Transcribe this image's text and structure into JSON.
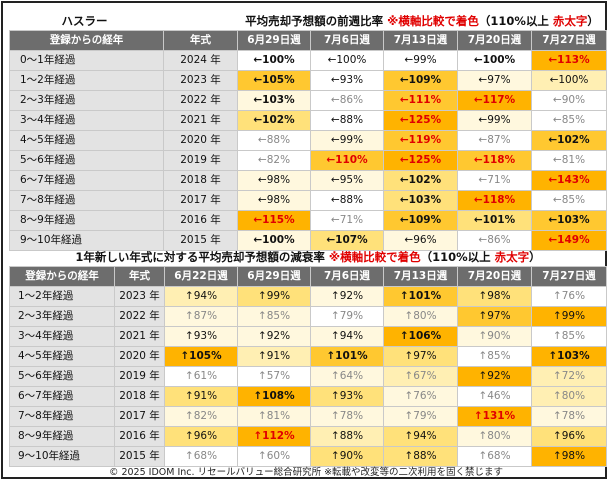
{
  "colors": {
    "header_bg": "#6d6d6d",
    "label_bg": "#e3e3e3",
    "accent_red": "#e00000",
    "heat_levels": [
      "#ffffff",
      "#fff8de",
      "#ffefb3",
      "#ffe17a",
      "#ffc830",
      "#ffb300"
    ]
  },
  "table1": {
    "maker": "ハスラー",
    "title_main": "平均売却予想額の前週比率",
    "title_note": "※横軸比較で着色",
    "title_paren_open": "（110%以上",
    "title_red": "赤太字",
    "title_paren_close": "）",
    "col_headers": [
      "登録からの経年",
      "年式",
      "6月29日週",
      "7月6日週",
      "7月13日週",
      "7月20日週",
      "7月27日週"
    ],
    "rows": [
      {
        "label": "0～1年経過",
        "year": "2024 年",
        "cells": [
          {
            "t": "←100%",
            "c": 0,
            "b": 1,
            "r": 0
          },
          {
            "t": "←100%",
            "c": 0,
            "b": 0,
            "r": 0
          },
          {
            "t": "←99%",
            "c": 0,
            "b": 0,
            "r": 0
          },
          {
            "t": "←100%",
            "c": 0,
            "b": 1,
            "r": 0
          },
          {
            "t": "←113%",
            "c": 5,
            "b": 1,
            "r": 1
          }
        ]
      },
      {
        "label": "1～2年経過",
        "year": "2023 年",
        "cells": [
          {
            "t": "←105%",
            "c": 4,
            "b": 1,
            "r": 0
          },
          {
            "t": "←93%",
            "c": 0,
            "b": 0,
            "r": 0
          },
          {
            "t": "←109%",
            "c": 4,
            "b": 1,
            "r": 0
          },
          {
            "t": "←97%",
            "c": 1,
            "b": 0,
            "r": 0
          },
          {
            "t": "←100%",
            "c": 2,
            "b": 0,
            "r": 0
          }
        ]
      },
      {
        "label": "2～3年経過",
        "year": "2022 年",
        "cells": [
          {
            "t": "←103%",
            "c": 1,
            "b": 1,
            "r": 0
          },
          {
            "t": "←86%",
            "c": 0,
            "b": 0,
            "r": 0,
            "g": 1
          },
          {
            "t": "←111%",
            "c": 4,
            "b": 1,
            "r": 1
          },
          {
            "t": "←117%",
            "c": 5,
            "b": 1,
            "r": 1
          },
          {
            "t": "←90%",
            "c": 0,
            "b": 0,
            "r": 0,
            "g": 1
          }
        ]
      },
      {
        "label": "3～4年経過",
        "year": "2021 年",
        "cells": [
          {
            "t": "←102%",
            "c": 3,
            "b": 1,
            "r": 0
          },
          {
            "t": "←88%",
            "c": 0,
            "b": 0,
            "r": 0
          },
          {
            "t": "←125%",
            "c": 5,
            "b": 1,
            "r": 1
          },
          {
            "t": "←99%",
            "c": 1,
            "b": 0,
            "r": 0
          },
          {
            "t": "←85%",
            "c": 0,
            "b": 0,
            "r": 0,
            "g": 1
          }
        ]
      },
      {
        "label": "4～5年経過",
        "year": "2020 年",
        "cells": [
          {
            "t": "←88%",
            "c": 0,
            "b": 0,
            "r": 0,
            "g": 1
          },
          {
            "t": "←99%",
            "c": 1,
            "b": 0,
            "r": 0
          },
          {
            "t": "←119%",
            "c": 4,
            "b": 1,
            "r": 1
          },
          {
            "t": "←87%",
            "c": 0,
            "b": 0,
            "r": 0,
            "g": 1
          },
          {
            "t": "←102%",
            "c": 4,
            "b": 1,
            "r": 0
          }
        ]
      },
      {
        "label": "5～6年経過",
        "year": "2019 年",
        "cells": [
          {
            "t": "←82%",
            "c": 0,
            "b": 0,
            "r": 0,
            "g": 1
          },
          {
            "t": "←110%",
            "c": 4,
            "b": 1,
            "r": 1
          },
          {
            "t": "←125%",
            "c": 5,
            "b": 1,
            "r": 1
          },
          {
            "t": "←118%",
            "c": 4,
            "b": 1,
            "r": 1
          },
          {
            "t": "←81%",
            "c": 0,
            "b": 0,
            "r": 0,
            "g": 1
          }
        ]
      },
      {
        "label": "6～7年経過",
        "year": "2018 年",
        "cells": [
          {
            "t": "←98%",
            "c": 1,
            "b": 0,
            "r": 0
          },
          {
            "t": "←95%",
            "c": 1,
            "b": 0,
            "r": 0
          },
          {
            "t": "←102%",
            "c": 3,
            "b": 1,
            "r": 0
          },
          {
            "t": "←71%",
            "c": 0,
            "b": 0,
            "r": 0,
            "g": 1
          },
          {
            "t": "←143%",
            "c": 5,
            "b": 1,
            "r": 1
          }
        ]
      },
      {
        "label": "7～8年経過",
        "year": "2017 年",
        "cells": [
          {
            "t": "←98%",
            "c": 1,
            "b": 0,
            "r": 0
          },
          {
            "t": "←88%",
            "c": 0,
            "b": 0,
            "r": 0
          },
          {
            "t": "←103%",
            "c": 3,
            "b": 1,
            "r": 0
          },
          {
            "t": "←118%",
            "c": 5,
            "b": 1,
            "r": 1
          },
          {
            "t": "←85%",
            "c": 0,
            "b": 0,
            "r": 0,
            "g": 1
          }
        ]
      },
      {
        "label": "8～9年経過",
        "year": "2016 年",
        "cells": [
          {
            "t": "←115%",
            "c": 5,
            "b": 1,
            "r": 1
          },
          {
            "t": "←71%",
            "c": 0,
            "b": 0,
            "r": 0,
            "g": 1
          },
          {
            "t": "←109%",
            "c": 4,
            "b": 1,
            "r": 0
          },
          {
            "t": "←101%",
            "c": 3,
            "b": 1,
            "r": 0
          },
          {
            "t": "←103%",
            "c": 4,
            "b": 1,
            "r": 0
          }
        ]
      },
      {
        "label": "9～10年経過",
        "year": "2015 年",
        "cells": [
          {
            "t": "←100%",
            "c": 1,
            "b": 1,
            "r": 0
          },
          {
            "t": "←107%",
            "c": 3,
            "b": 1,
            "r": 0
          },
          {
            "t": "←96%",
            "c": 1,
            "b": 0,
            "r": 0
          },
          {
            "t": "←86%",
            "c": 0,
            "b": 0,
            "r": 0,
            "g": 1
          },
          {
            "t": "←149%",
            "c": 5,
            "b": 1,
            "r": 1
          }
        ]
      }
    ]
  },
  "table2": {
    "title_main": "1年新しい年式に対する平均売却予想額の減衰率",
    "title_note": "※横軸比較で着色",
    "title_paren_open": "（110%以上",
    "title_red": "赤太字",
    "title_paren_close": "）",
    "col_headers": [
      "登録からの経年",
      "年式",
      "6月22日週",
      "6月29日週",
      "7月6日週",
      "7月13日週",
      "7月20日週",
      "7月27日週"
    ],
    "rows": [
      {
        "label": "1～2年経過",
        "year": "2023 年",
        "cells": [
          {
            "t": "↑94%",
            "c": 2,
            "b": 0,
            "r": 0
          },
          {
            "t": "↑99%",
            "c": 3,
            "b": 0,
            "r": 0
          },
          {
            "t": "↑92%",
            "c": 1,
            "b": 0,
            "r": 0
          },
          {
            "t": "↑101%",
            "c": 4,
            "b": 1,
            "r": 0
          },
          {
            "t": "↑98%",
            "c": 3,
            "b": 0,
            "r": 0
          },
          {
            "t": "↑76%",
            "c": 0,
            "b": 0,
            "r": 0,
            "g": 1
          }
        ]
      },
      {
        "label": "2～3年経過",
        "year": "2022 年",
        "cells": [
          {
            "t": "↑87%",
            "c": 1,
            "b": 0,
            "r": 0,
            "g": 1
          },
          {
            "t": "↑85%",
            "c": 1,
            "b": 0,
            "r": 0,
            "g": 1
          },
          {
            "t": "↑79%",
            "c": 0,
            "b": 0,
            "r": 0,
            "g": 1
          },
          {
            "t": "↑80%",
            "c": 1,
            "b": 0,
            "r": 0,
            "g": 1
          },
          {
            "t": "↑97%",
            "c": 4,
            "b": 0,
            "r": 0
          },
          {
            "t": "↑99%",
            "c": 5,
            "b": 0,
            "r": 0
          }
        ]
      },
      {
        "label": "3～4年経過",
        "year": "2021 年",
        "cells": [
          {
            "t": "↑93%",
            "c": 1,
            "b": 0,
            "r": 0
          },
          {
            "t": "↑92%",
            "c": 1,
            "b": 0,
            "r": 0
          },
          {
            "t": "↑94%",
            "c": 1,
            "b": 0,
            "r": 0
          },
          {
            "t": "↑106%",
            "c": 5,
            "b": 1,
            "r": 0
          },
          {
            "t": "↑90%",
            "c": 1,
            "b": 0,
            "r": 0,
            "g": 1
          },
          {
            "t": "↑85%",
            "c": 0,
            "b": 0,
            "r": 0,
            "g": 1
          }
        ]
      },
      {
        "label": "4～5年経過",
        "year": "2020 年",
        "cells": [
          {
            "t": "↑105%",
            "c": 5,
            "b": 1,
            "r": 0
          },
          {
            "t": "↑91%",
            "c": 2,
            "b": 0,
            "r": 0
          },
          {
            "t": "↑101%",
            "c": 4,
            "b": 1,
            "r": 0
          },
          {
            "t": "↑97%",
            "c": 3,
            "b": 0,
            "r": 0
          },
          {
            "t": "↑85%",
            "c": 0,
            "b": 0,
            "r": 0,
            "g": 1
          },
          {
            "t": "↑103%",
            "c": 5,
            "b": 1,
            "r": 0
          }
        ]
      },
      {
        "label": "5～6年経過",
        "year": "2019 年",
        "cells": [
          {
            "t": "↑61%",
            "c": 0,
            "b": 0,
            "r": 0,
            "g": 1
          },
          {
            "t": "↑57%",
            "c": 0,
            "b": 0,
            "r": 0,
            "g": 1
          },
          {
            "t": "↑64%",
            "c": 1,
            "b": 0,
            "r": 0,
            "g": 1
          },
          {
            "t": "↑67%",
            "c": 2,
            "b": 0,
            "r": 0,
            "g": 1
          },
          {
            "t": "↑92%",
            "c": 5,
            "b": 0,
            "r": 0
          },
          {
            "t": "↑72%",
            "c": 2,
            "b": 0,
            "r": 0,
            "g": 1
          }
        ]
      },
      {
        "label": "6～7年経過",
        "year": "2018 年",
        "cells": [
          {
            "t": "↑91%",
            "c": 3,
            "b": 0,
            "r": 0
          },
          {
            "t": "↑108%",
            "c": 5,
            "b": 1,
            "r": 0
          },
          {
            "t": "↑93%",
            "c": 3,
            "b": 0,
            "r": 0
          },
          {
            "t": "↑76%",
            "c": 1,
            "b": 0,
            "r": 0,
            "g": 1
          },
          {
            "t": "↑46%",
            "c": 0,
            "b": 0,
            "r": 0,
            "g": 1
          },
          {
            "t": "↑80%",
            "c": 2,
            "b": 0,
            "r": 0,
            "g": 1
          }
        ]
      },
      {
        "label": "7～8年経過",
        "year": "2017 年",
        "cells": [
          {
            "t": "↑82%",
            "c": 1,
            "b": 0,
            "r": 0,
            "g": 1
          },
          {
            "t": "↑81%",
            "c": 1,
            "b": 0,
            "r": 0,
            "g": 1
          },
          {
            "t": "↑78%",
            "c": 1,
            "b": 0,
            "r": 0,
            "g": 1
          },
          {
            "t": "↑79%",
            "c": 1,
            "b": 0,
            "r": 0,
            "g": 1
          },
          {
            "t": "↑131%",
            "c": 5,
            "b": 1,
            "r": 1
          },
          {
            "t": "↑78%",
            "c": 1,
            "b": 0,
            "r": 0,
            "g": 1
          }
        ]
      },
      {
        "label": "8～9年経過",
        "year": "2016 年",
        "cells": [
          {
            "t": "↑96%",
            "c": 3,
            "b": 0,
            "r": 0
          },
          {
            "t": "↑112%",
            "c": 5,
            "b": 1,
            "r": 1
          },
          {
            "t": "↑88%",
            "c": 2,
            "b": 0,
            "r": 0
          },
          {
            "t": "↑94%",
            "c": 3,
            "b": 0,
            "r": 0
          },
          {
            "t": "↑80%",
            "c": 1,
            "b": 0,
            "r": 0,
            "g": 1
          },
          {
            "t": "↑96%",
            "c": 3,
            "b": 0,
            "r": 0
          }
        ]
      },
      {
        "label": "9～10年経過",
        "year": "2015 年",
        "cells": [
          {
            "t": "↑68%",
            "c": 0,
            "b": 0,
            "r": 0,
            "g": 1
          },
          {
            "t": "↑60%",
            "c": 0,
            "b": 0,
            "r": 0,
            "g": 1
          },
          {
            "t": "↑90%",
            "c": 3,
            "b": 0,
            "r": 0
          },
          {
            "t": "↑88%",
            "c": 3,
            "b": 0,
            "r": 0
          },
          {
            "t": "↑68%",
            "c": 0,
            "b": 0,
            "r": 0,
            "g": 1
          },
          {
            "t": "↑98%",
            "c": 5,
            "b": 0,
            "r": 0
          }
        ]
      }
    ]
  },
  "footer": "© 2025 IDOM Inc. リセールバリュー総合研究所 ※転載や改変等の二次利用を固く禁じます",
  "chart_data": [
    {
      "type": "table",
      "title": "平均売却予想額の前週比率",
      "columns": [
        "6月29日週",
        "7月6日週",
        "7月13日週",
        "7月20日週",
        "7月27日週"
      ],
      "rows": [
        "0～1年経過",
        "1～2年経過",
        "2～3年経過",
        "3～4年経過",
        "4～5年経過",
        "5～6年経過",
        "6～7年経過",
        "7～8年経過",
        "8～9年経過",
        "9～10年経過"
      ],
      "values": [
        [
          100,
          100,
          99,
          100,
          113
        ],
        [
          105,
          93,
          109,
          97,
          100
        ],
        [
          103,
          86,
          111,
          117,
          90
        ],
        [
          102,
          88,
          125,
          99,
          85
        ],
        [
          88,
          99,
          119,
          87,
          102
        ],
        [
          82,
          110,
          125,
          118,
          81
        ],
        [
          98,
          95,
          102,
          71,
          143
        ],
        [
          98,
          88,
          103,
          118,
          85
        ],
        [
          115,
          71,
          109,
          101,
          103
        ],
        [
          100,
          107,
          96,
          86,
          149
        ]
      ]
    },
    {
      "type": "table",
      "title": "1年新しい年式に対する平均売却予想額の減衰率",
      "columns": [
        "6月22日週",
        "6月29日週",
        "7月6日週",
        "7月13日週",
        "7月20日週",
        "7月27日週"
      ],
      "rows": [
        "1～2年経過",
        "2～3年経過",
        "3～4年経過",
        "4～5年経過",
        "5～6年経過",
        "6～7年経過",
        "7～8年経過",
        "8～9年経過",
        "9～10年経過"
      ],
      "values": [
        [
          94,
          99,
          92,
          101,
          98,
          76
        ],
        [
          87,
          85,
          79,
          80,
          97,
          99
        ],
        [
          93,
          92,
          94,
          106,
          90,
          85
        ],
        [
          105,
          91,
          101,
          97,
          85,
          103
        ],
        [
          61,
          57,
          64,
          67,
          92,
          72
        ],
        [
          91,
          108,
          93,
          76,
          46,
          80
        ],
        [
          82,
          81,
          78,
          79,
          131,
          78
        ],
        [
          96,
          112,
          88,
          94,
          80,
          96
        ],
        [
          68,
          60,
          90,
          88,
          68,
          98
        ]
      ]
    }
  ]
}
